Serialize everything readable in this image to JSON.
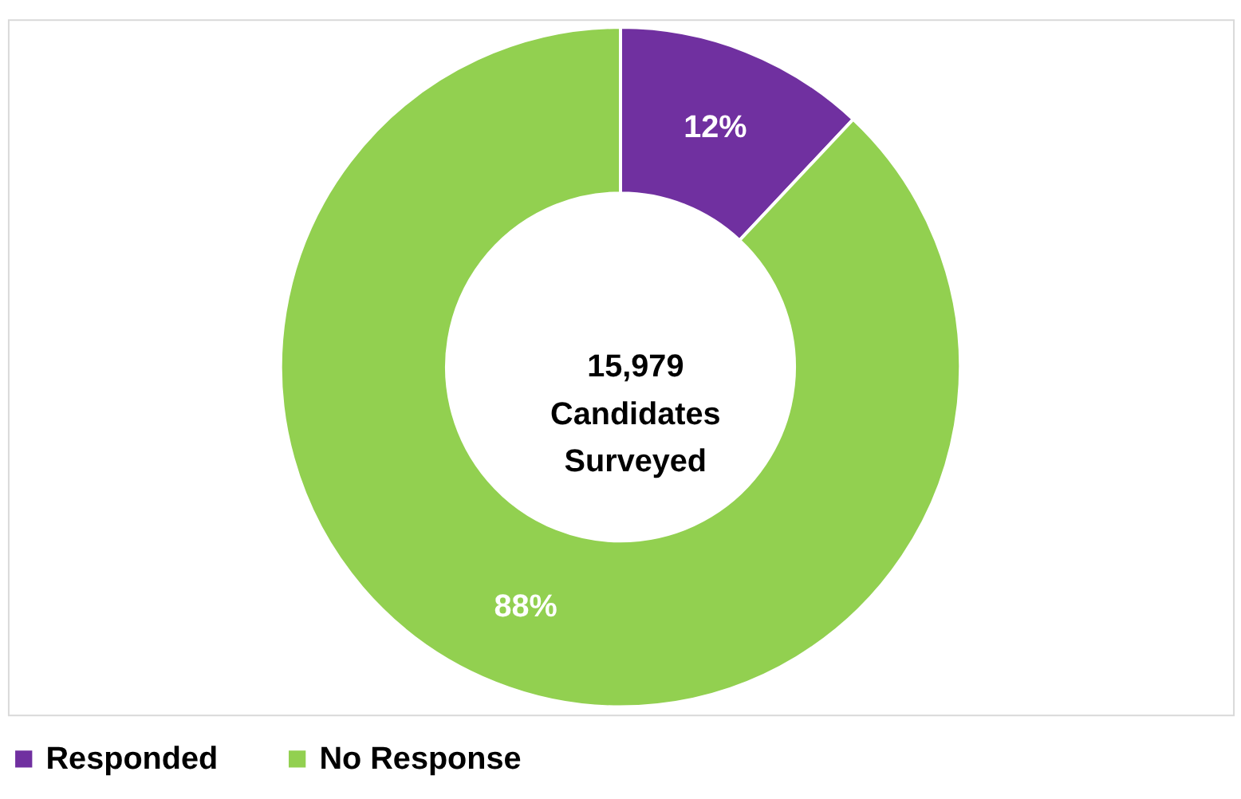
{
  "chart_data": {
    "type": "donut",
    "categories": [
      "Responded",
      "No Response"
    ],
    "values": [
      12,
      88
    ],
    "colors": [
      "#7030a0",
      "#92d050"
    ],
    "value_labels": [
      "12%",
      "88%"
    ],
    "annotations": [
      "15,979\nCandidates\nSurveyed"
    ],
    "legend": "bottom"
  }
}
